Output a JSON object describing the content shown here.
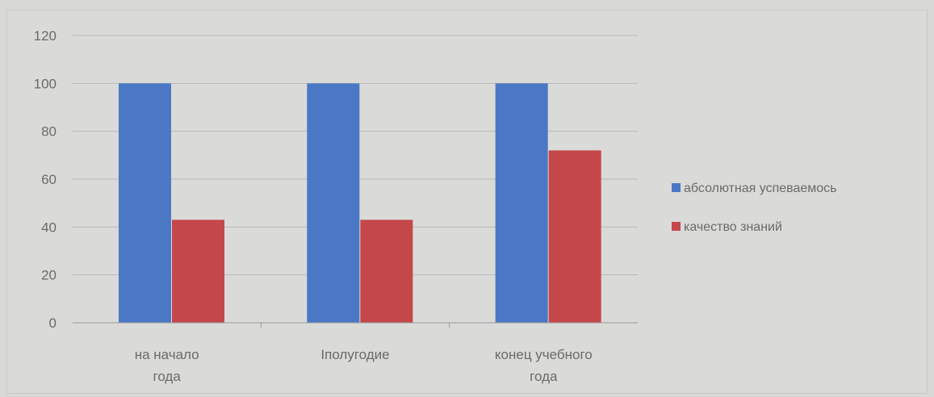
{
  "chart_data": {
    "type": "bar",
    "title": "",
    "xlabel": "",
    "ylabel": "",
    "categories": [
      "на начало года",
      "Iполугодие",
      "конец учебного года"
    ],
    "series": [
      {
        "name": "абсолютная успеваемось",
        "values": [
          100,
          100,
          100
        ]
      },
      {
        "name": "качество знаний",
        "values": [
          43,
          43,
          72
        ]
      }
    ],
    "ylim": [
      0,
      120
    ],
    "yticks": [
      "0",
      "20",
      "40",
      "60",
      "80",
      "100",
      "120"
    ],
    "grid": true,
    "legend": "right"
  },
  "colors": {
    "series_1": "#4a78c4",
    "series_2": "#c4474a",
    "grid": "#b8b8b8",
    "axis": "#9a9a9a"
  }
}
